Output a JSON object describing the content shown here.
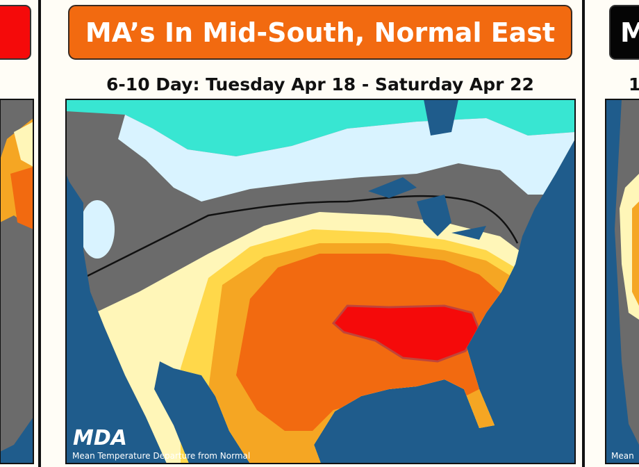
{
  "center_panel": {
    "title": "MA’s In Mid-South, Normal East",
    "subtitle": "6-10 Day: Tuesday Apr 18 - Saturday Apr 22",
    "logo": "MDA",
    "caption": "Mean Temperature Departure from Normal"
  },
  "right_panel": {
    "title": "M",
    "subtitle": "1",
    "caption": "Mean"
  }
}
